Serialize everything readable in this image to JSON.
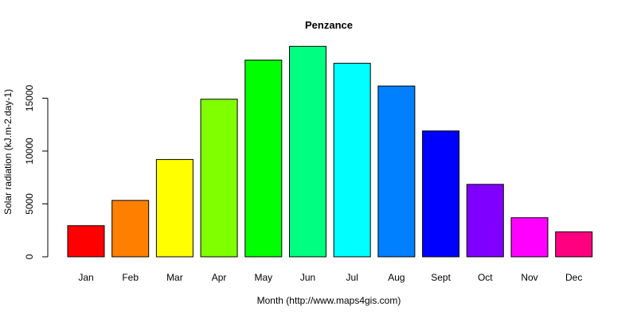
{
  "chart_data": {
    "type": "bar",
    "title": "Penzance",
    "xlabel": "Month (http://www.maps4gis.com)",
    "ylabel": "Solar radiation (kJ.m-2.day-1)",
    "categories": [
      "Jan",
      "Feb",
      "Mar",
      "Apr",
      "May",
      "Jun",
      "Jul",
      "Aug",
      "Sept",
      "Oct",
      "Nov",
      "Dec"
    ],
    "values": [
      2950,
      5330,
      9200,
      14900,
      18600,
      19900,
      18300,
      16150,
      11900,
      6850,
      3700,
      2350
    ],
    "colors": [
      "#FF0000",
      "#FF8000",
      "#FFFF00",
      "#80FF00",
      "#00FF00",
      "#00FF80",
      "#00FFFF",
      "#0080FF",
      "#0000FF",
      "#8000FF",
      "#FF00FF",
      "#FF0080"
    ],
    "yticks": [
      "0",
      "5000",
      "10000",
      "15000"
    ],
    "ytick_values": [
      0,
      5000,
      10000,
      15000
    ],
    "ylim": [
      0,
      20000
    ],
    "grid": false,
    "legend": "none"
  }
}
